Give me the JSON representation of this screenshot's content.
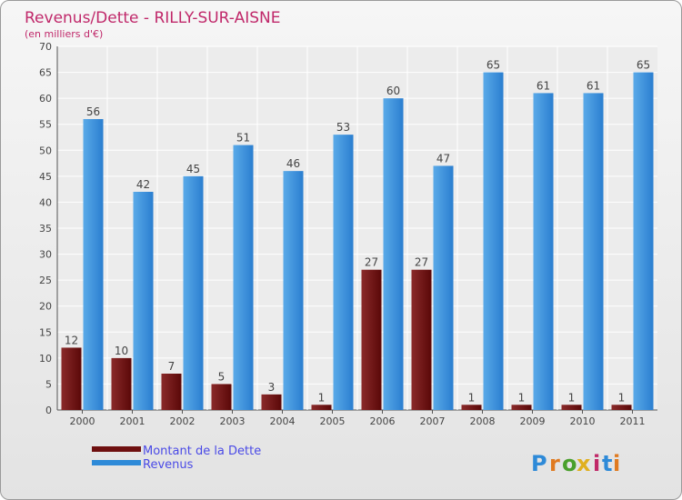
{
  "chart_data": {
    "type": "bar",
    "title": "Revenus/Dette - RILLY-SUR-AISNE",
    "subtitle": "(en milliers d'€)",
    "xlabel": "",
    "ylabel": "",
    "ylim": [
      0,
      70
    ],
    "ytick_step": 5,
    "grid": true,
    "categories": [
      "2000",
      "2001",
      "2002",
      "2003",
      "2004",
      "2005",
      "2006",
      "2007",
      "2008",
      "2009",
      "2010",
      "2011"
    ],
    "series": [
      {
        "name": "Montant de la Dette",
        "values": [
          12,
          10,
          7,
          5,
          3,
          1,
          27,
          27,
          1,
          1,
          1,
          1
        ]
      },
      {
        "name": "Revenus",
        "values": [
          56,
          42,
          45,
          51,
          46,
          53,
          60,
          47,
          65,
          61,
          61,
          65
        ]
      }
    ],
    "legend_position": "bottom-left"
  },
  "colors": {
    "title": "#c0286a",
    "legend_text": "#4a4ae6",
    "dette": "#6e0f0f",
    "dette_light": "#8a2a2a",
    "revenus": "#2e8ad8",
    "revenus_light": "#5aaae8"
  },
  "brand": {
    "name": "Proxiti"
  }
}
